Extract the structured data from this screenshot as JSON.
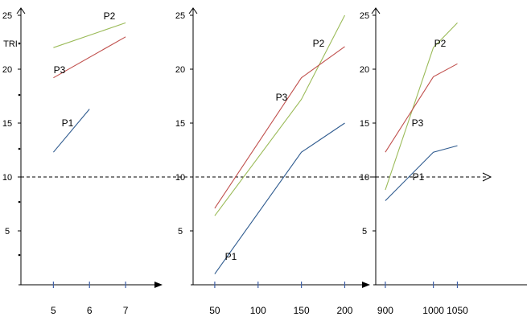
{
  "chart_data": [
    {
      "type": "line",
      "ylabel": "TRI",
      "ylim": [
        0,
        25
      ],
      "xlim": [
        4.1,
        7.8
      ],
      "y_ticks": [
        "5",
        "10",
        "15",
        "20",
        "25"
      ],
      "x_ticks": [
        "5",
        "6",
        "7"
      ],
      "x_tick_values": [
        5,
        6,
        7
      ],
      "reference_line": 10,
      "series": [
        {
          "name": "P1",
          "color": "#2f5b8f",
          "x": [
            5,
            6
          ],
          "y": [
            12.3,
            16.3
          ]
        },
        {
          "name": "P2",
          "color": "#9bbb59",
          "x": [
            5,
            7
          ],
          "y": [
            22.0,
            24.3
          ]
        },
        {
          "name": "P3",
          "color": "#c0504d",
          "x": [
            5,
            7
          ],
          "y": [
            19.2,
            23.0
          ]
        }
      ]
    },
    {
      "type": "line",
      "ylim": [
        0,
        25
      ],
      "xlim": [
        25,
        220
      ],
      "y_ticks": [
        "5",
        "10",
        "15",
        "20",
        "25"
      ],
      "x_ticks": [
        "50",
        "100",
        "150",
        "200"
      ],
      "x_tick_values": [
        50,
        100,
        150,
        200
      ],
      "reference_line": 10,
      "series": [
        {
          "name": "P1",
          "color": "#2f5b8f",
          "x": [
            50,
            150,
            200
          ],
          "y": [
            1.0,
            12.3,
            15.0
          ]
        },
        {
          "name": "P2",
          "color": "#9bbb59",
          "x": [
            50,
            150,
            200
          ],
          "y": [
            6.4,
            17.2,
            25.0
          ]
        },
        {
          "name": "P3",
          "color": "#c0504d",
          "x": [
            50,
            150,
            200
          ],
          "y": [
            7.1,
            19.2,
            22.1
          ]
        }
      ]
    },
    {
      "type": "line",
      "ylim": [
        0,
        25
      ],
      "xlim": [
        880,
        1200
      ],
      "y_ticks": [
        "5",
        "10",
        "15",
        "20",
        "25"
      ],
      "x_ticks": [
        "900",
        "1000",
        "1050"
      ],
      "x_tick_values": [
        900,
        1000,
        1050
      ],
      "reference_line": 10,
      "series": [
        {
          "name": "P1",
          "color": "#2f5b8f",
          "x": [
            900,
            1000,
            1050
          ],
          "y": [
            7.8,
            12.3,
            12.9
          ]
        },
        {
          "name": "P2",
          "color": "#9bbb59",
          "x": [
            900,
            1000,
            1050
          ],
          "y": [
            8.8,
            22.0,
            24.3
          ]
        },
        {
          "name": "P3",
          "color": "#c0504d",
          "x": [
            900,
            1000,
            1050
          ],
          "y": [
            12.3,
            19.3,
            20.5
          ]
        }
      ]
    }
  ]
}
